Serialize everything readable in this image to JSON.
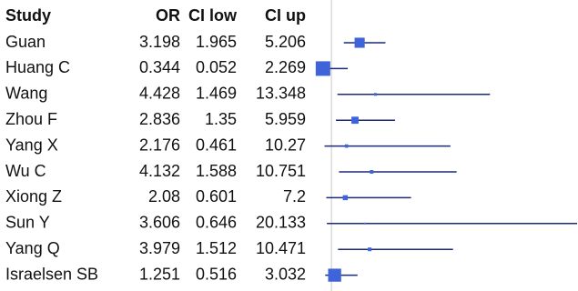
{
  "chart_data": {
    "type": "forest",
    "headers": [
      "Study",
      "OR",
      "CI low",
      "CI up"
    ],
    "categories": [
      "Guan",
      "Huang C",
      "Wang",
      "Zhou F",
      "Yang X",
      "Wu C",
      "Xiong Z",
      "Sun Y",
      "Yang Q",
      "Israelsen SB"
    ],
    "or": [
      3.198,
      0.344,
      4.428,
      2.836,
      2.176,
      4.132,
      2.08,
      3.606,
      3.979,
      1.251
    ],
    "ci_low": [
      1.965,
      0.052,
      1.469,
      1.35,
      0.461,
      1.588,
      0.601,
      0.646,
      1.512,
      0.516
    ],
    "ci_up": [
      5.206,
      2.269,
      13.348,
      5.959,
      10.27,
      10.751,
      7.2,
      20.133,
      10.471,
      3.032
    ],
    "reference_line": 1,
    "box_color": "#3f63d8",
    "line_color": "#1c2a78"
  }
}
